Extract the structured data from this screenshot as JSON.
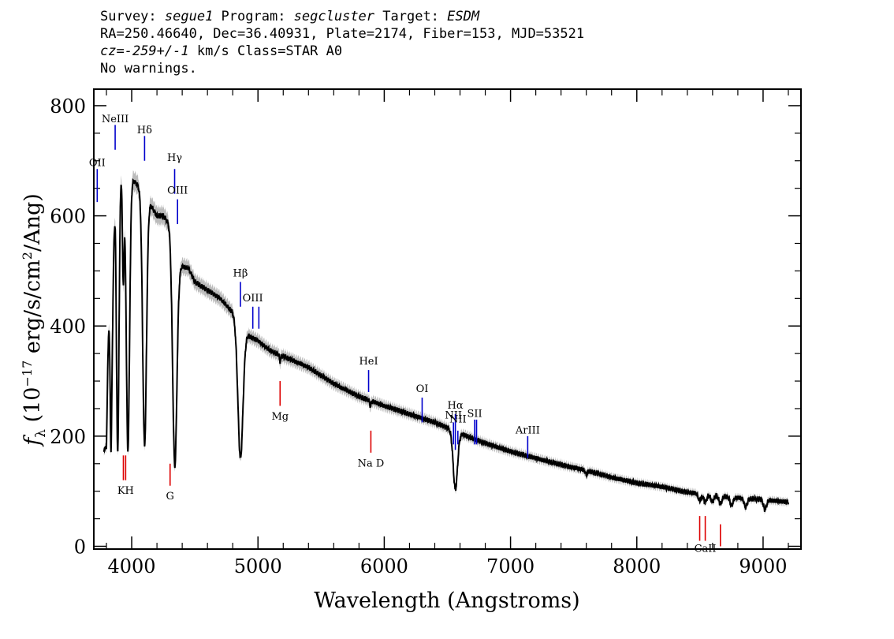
{
  "header": {
    "line1": {
      "survey_label": "Survey: ",
      "survey": "segue1",
      "program_label": " Program: ",
      "program": "segcluster",
      "target_label": " Target: ",
      "target": "ESDM"
    },
    "line2": "RA=250.46640, Dec=36.40931, Plate=2174, Fiber=153, MJD=53521",
    "line3": {
      "cz_label": "cz=",
      "cz_value": "-259+/-1",
      "cz_unit": " km/s Class=STAR A0"
    },
    "line4": "No warnings."
  },
  "chart_data": {
    "type": "line",
    "xlabel": "Wavelength (Angstroms)",
    "ylabel": "f_λ (10^-17 erg/s/cm^2/Ang)",
    "xlim": [
      3700,
      9300
    ],
    "ylim": [
      -5,
      830
    ],
    "xticks": [
      4000,
      5000,
      6000,
      7000,
      8000,
      9000
    ],
    "yticks": [
      0,
      200,
      400,
      600,
      800
    ],
    "series_color": "#000000",
    "error_color": "#bbbbbb",
    "emission_line_color": "#0000cc",
    "absorption_line_color": "#dd0000",
    "continuum": [
      [
        3780,
        175
      ],
      [
        3800,
        180
      ],
      [
        3830,
        600
      ],
      [
        3850,
        470
      ],
      [
        3870,
        648
      ],
      [
        3890,
        600
      ],
      [
        3920,
        690
      ],
      [
        3950,
        680
      ],
      [
        4000,
        668
      ],
      [
        4050,
        655
      ],
      [
        4100,
        635
      ],
      [
        4150,
        620
      ],
      [
        4200,
        600
      ],
      [
        4250,
        600
      ],
      [
        4300,
        585
      ],
      [
        4380,
        510
      ],
      [
        4450,
        505
      ],
      [
        4500,
        480
      ],
      [
        4600,
        465
      ],
      [
        4700,
        450
      ],
      [
        4800,
        425
      ],
      [
        4860,
        395
      ],
      [
        4930,
        382
      ],
      [
        5000,
        373
      ],
      [
        5100,
        355
      ],
      [
        5200,
        345
      ],
      [
        5400,
        325
      ],
      [
        5600,
        295
      ],
      [
        5800,
        272
      ],
      [
        6000,
        255
      ],
      [
        6200,
        240
      ],
      [
        6400,
        225
      ],
      [
        6500,
        215
      ],
      [
        6600,
        205
      ],
      [
        6800,
        187
      ],
      [
        7000,
        172
      ],
      [
        7200,
        160
      ],
      [
        7400,
        148
      ],
      [
        7600,
        138
      ],
      [
        7800,
        125
      ],
      [
        8000,
        115
      ],
      [
        8200,
        108
      ],
      [
        8400,
        98
      ],
      [
        8600,
        93
      ],
      [
        8800,
        88
      ],
      [
        9000,
        85
      ],
      [
        9200,
        80
      ]
    ],
    "absorption_features": [
      {
        "center": 3835,
        "depth": 390,
        "width": 8
      },
      {
        "center": 3889,
        "depth": 430,
        "width": 10
      },
      {
        "center": 3933,
        "depth": 200,
        "width": 7
      },
      {
        "center": 3970,
        "depth": 500,
        "width": 13
      },
      {
        "center": 4102,
        "depth": 450,
        "width": 15
      },
      {
        "center": 4341,
        "depth": 400,
        "width": 17
      },
      {
        "center": 4861,
        "depth": 235,
        "width": 20
      },
      {
        "center": 5175,
        "depth": 12,
        "width": 5
      },
      {
        "center": 5890,
        "depth": 10,
        "width": 5
      },
      {
        "center": 6563,
        "depth": 105,
        "width": 17
      },
      {
        "center": 7600,
        "depth": 8,
        "width": 8
      },
      {
        "center": 8498,
        "depth": 12,
        "width": 12
      },
      {
        "center": 8542,
        "depth": 14,
        "width": 12
      },
      {
        "center": 8598,
        "depth": 12,
        "width": 12
      },
      {
        "center": 8662,
        "depth": 14,
        "width": 12
      },
      {
        "center": 8750,
        "depth": 15,
        "width": 12
      },
      {
        "center": 8862,
        "depth": 16,
        "width": 12
      },
      {
        "center": 9015,
        "depth": 18,
        "width": 12
      }
    ],
    "emission_lines": [
      {
        "name": "OII",
        "wave": 3727,
        "y_bottom": 625,
        "y_top": 685,
        "label_y": 690
      },
      {
        "name": "NeIII",
        "wave": 3869,
        "y_bottom": 720,
        "y_top": 765,
        "label_y": 770
      },
      {
        "name": "Hδ",
        "wave": 4102,
        "y_bottom": 700,
        "y_top": 745,
        "label_y": 750
      },
      {
        "name": "Hγ",
        "wave": 4340,
        "y_bottom": 640,
        "y_top": 685,
        "label_y": 700
      },
      {
        "name": "OIII",
        "wave": 4363,
        "y_bottom": 585,
        "y_top": 630,
        "label_y": 640
      },
      {
        "name": "Hβ",
        "wave": 4861,
        "y_bottom": 435,
        "y_top": 480,
        "label_y": 490
      },
      {
        "name": "OIII",
        "wave": 4959,
        "y_bottom": 395,
        "y_top": 435,
        "label_y": 445
      },
      {
        "name": "",
        "wave": 5007,
        "y_bottom": 395,
        "y_top": 435,
        "label_y": 0
      },
      {
        "name": "HeI",
        "wave": 5876,
        "y_bottom": 280,
        "y_top": 320,
        "label_y": 330
      },
      {
        "name": "OI",
        "wave": 6300,
        "y_bottom": 225,
        "y_top": 270,
        "label_y": 280
      },
      {
        "name": "NII",
        "wave": 6548,
        "y_bottom": 185,
        "y_top": 225,
        "label_y": 232
      },
      {
        "name": "Hα",
        "wave": 6563,
        "y_bottom": 175,
        "y_top": 240,
        "label_y": 250
      },
      {
        "name": "NII",
        "wave": 6583,
        "y_bottom": 185,
        "y_top": 210,
        "label_y": 225
      },
      {
        "name": "SII",
        "wave": 6716,
        "y_bottom": 185,
        "y_top": 230,
        "label_y": 235
      },
      {
        "name": "",
        "wave": 6731,
        "y_bottom": 185,
        "y_top": 230,
        "label_y": 0
      },
      {
        "name": "ArIII",
        "wave": 7136,
        "y_bottom": 160,
        "y_top": 200,
        "label_y": 205
      }
    ],
    "absorption_lines": [
      {
        "name": "KH",
        "wave": 3952,
        "y_top": 165,
        "y_bottom": 120,
        "label_y": 95
      },
      {
        "name": "",
        "wave": 3934,
        "y_top": 165,
        "y_bottom": 120,
        "label_y": 0
      },
      {
        "name": "G",
        "wave": 4304,
        "y_top": 150,
        "y_bottom": 110,
        "label_y": 85
      },
      {
        "name": "Mg",
        "wave": 5175,
        "y_top": 300,
        "y_bottom": 255,
        "label_y": 230
      },
      {
        "name": "Na D",
        "wave": 5894,
        "y_top": 210,
        "y_bottom": 170,
        "label_y": 145
      },
      {
        "name": "CaII",
        "wave": 8542,
        "y_top": 55,
        "y_bottom": 10,
        "label_y": -10
      },
      {
        "name": "",
        "wave": 8498,
        "y_top": 55,
        "y_bottom": 10,
        "label_y": 0
      },
      {
        "name": "",
        "wave": 8662,
        "y_top": 40,
        "y_bottom": 0,
        "label_y": 0
      }
    ]
  }
}
